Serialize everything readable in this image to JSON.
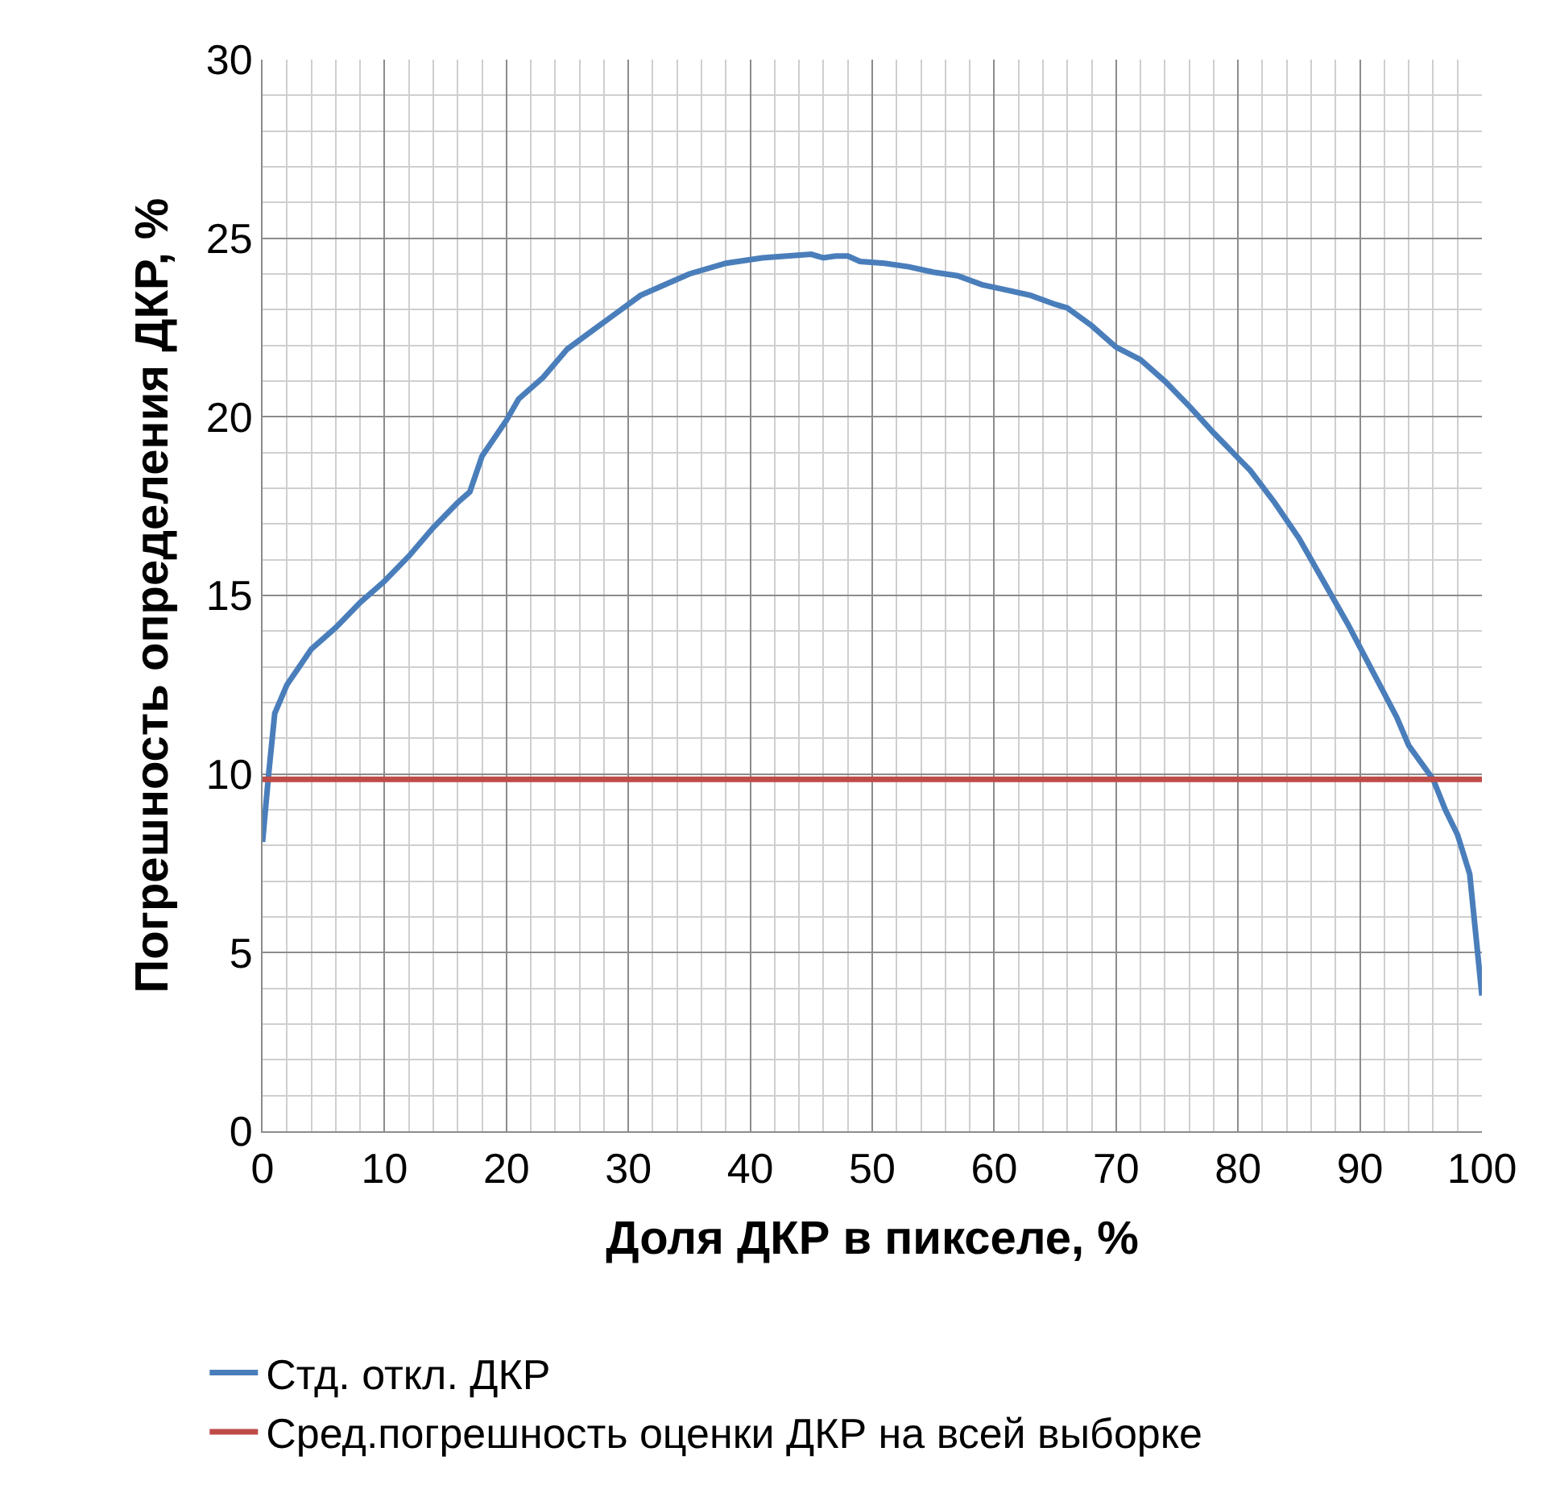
{
  "chart_data": {
    "type": "line",
    "xlabel": "Доля ДКР в пикселе, %",
    "ylabel": "Погрешность определения ДКР, %",
    "xlim": [
      0,
      100
    ],
    "ylim": [
      0,
      30
    ],
    "xticks": [
      0,
      {
        "value": 2,
        "label": null
      },
      {
        "value": 4,
        "label": null
      },
      {
        "value": 6,
        "label": null
      },
      {
        "value": 8,
        "label": null
      },
      10,
      {
        "value": 12,
        "label": null
      },
      {
        "value": 14,
        "label": null
      },
      {
        "value": 16,
        "label": null
      },
      {
        "value": 18,
        "label": null
      },
      20,
      {
        "value": 22,
        "label": null
      },
      {
        "value": 24,
        "label": null
      },
      {
        "value": 26,
        "label": null
      },
      {
        "value": 28,
        "label": null
      },
      30,
      {
        "value": 32,
        "label": null
      },
      {
        "value": 34,
        "label": null
      },
      {
        "value": 36,
        "label": null
      },
      {
        "value": 38,
        "label": null
      },
      40,
      {
        "value": 42,
        "label": null
      },
      {
        "value": 44,
        "label": null
      },
      {
        "value": 46,
        "label": null
      },
      {
        "value": 48,
        "label": null
      },
      50,
      {
        "value": 52,
        "label": null
      },
      {
        "value": 54,
        "label": null
      },
      {
        "value": 56,
        "label": null
      },
      {
        "value": 58,
        "label": null
      },
      60,
      {
        "value": 62,
        "label": null
      },
      {
        "value": 64,
        "label": null
      },
      {
        "value": 66,
        "label": null
      },
      {
        "value": 68,
        "label": null
      },
      70,
      {
        "value": 72,
        "label": null
      },
      {
        "value": 74,
        "label": null
      },
      {
        "value": 76,
        "label": null
      },
      {
        "value": 78,
        "label": null
      },
      80,
      {
        "value": 82,
        "label": null
      },
      {
        "value": 84,
        "label": null
      },
      {
        "value": 86,
        "label": null
      },
      {
        "value": 88,
        "label": null
      },
      90,
      {
        "value": 92,
        "label": null
      },
      {
        "value": 94,
        "label": null
      },
      {
        "value": 96,
        "label": null
      },
      {
        "value": 98,
        "label": null
      },
      100
    ],
    "yticks": [
      0,
      {
        "value": 1,
        "label": null
      },
      {
        "value": 2,
        "label": null
      },
      {
        "value": 3,
        "label": null
      },
      {
        "value": 4,
        "label": null
      },
      5,
      {
        "value": 6,
        "label": null
      },
      {
        "value": 7,
        "label": null
      },
      {
        "value": 8,
        "label": null
      },
      {
        "value": 9,
        "label": null
      },
      10,
      {
        "value": 11,
        "label": null
      },
      {
        "value": 12,
        "label": null
      },
      {
        "value": 13,
        "label": null
      },
      {
        "value": 14,
        "label": null
      },
      15,
      {
        "value": 16,
        "label": null
      },
      {
        "value": 17,
        "label": null
      },
      {
        "value": 18,
        "label": null
      },
      {
        "value": 19,
        "label": null
      },
      20,
      {
        "value": 21,
        "label": null
      },
      {
        "value": 22,
        "label": null
      },
      {
        "value": 23,
        "label": null
      },
      {
        "value": 24,
        "label": null
      },
      25,
      {
        "value": 26,
        "label": null
      },
      {
        "value": 27,
        "label": null
      },
      {
        "value": 28,
        "label": null
      },
      {
        "value": 29,
        "label": null
      },
      30
    ],
    "grid": true,
    "legend": "bottom",
    "marker": "none",
    "line_style": "solid",
    "series": [
      {
        "name": "Стд. откл. ДКР",
        "color": "#4a7ebb",
        "x": [
          0,
          0.5,
          1,
          2,
          3,
          4,
          6,
          8,
          10,
          12,
          14,
          16,
          17,
          18,
          20,
          21,
          23,
          25,
          27,
          29,
          31,
          33,
          35,
          38,
          41,
          43,
          45,
          46,
          47,
          48,
          49,
          51,
          53,
          55,
          57,
          59,
          61,
          63,
          65,
          66,
          68,
          70,
          72,
          74,
          76,
          78,
          80,
          81,
          83,
          85,
          87,
          89,
          91,
          93,
          94,
          96,
          97,
          98,
          99,
          99.5,
          100
        ],
        "values": [
          8.1,
          10,
          11.7,
          12.5,
          13,
          13.5,
          14.1,
          14.8,
          15.4,
          16.1,
          16.9,
          17.6,
          17.9,
          18.9,
          19.9,
          20.5,
          21.1,
          21.9,
          22.4,
          22.9,
          23.4,
          23.7,
          24,
          24.3,
          24.45,
          24.5,
          24.55,
          24.45,
          24.5,
          24.5,
          24.35,
          24.3,
          24.2,
          24.05,
          23.95,
          23.7,
          23.55,
          23.4,
          23.15,
          23.05,
          22.55,
          21.95,
          21.6,
          21,
          20.3,
          19.55,
          18.85,
          18.5,
          17.6,
          16.6,
          15.4,
          14.2,
          12.9,
          11.6,
          10.8,
          9.85,
          9,
          8.3,
          7.2,
          5.5,
          3.8
        ]
      },
      {
        "name": "Сред.погрешность оценки ДКР на всей выборке",
        "color": "#be4b48",
        "x": [
          0,
          100
        ],
        "values": [
          9.85,
          9.85
        ]
      }
    ]
  }
}
